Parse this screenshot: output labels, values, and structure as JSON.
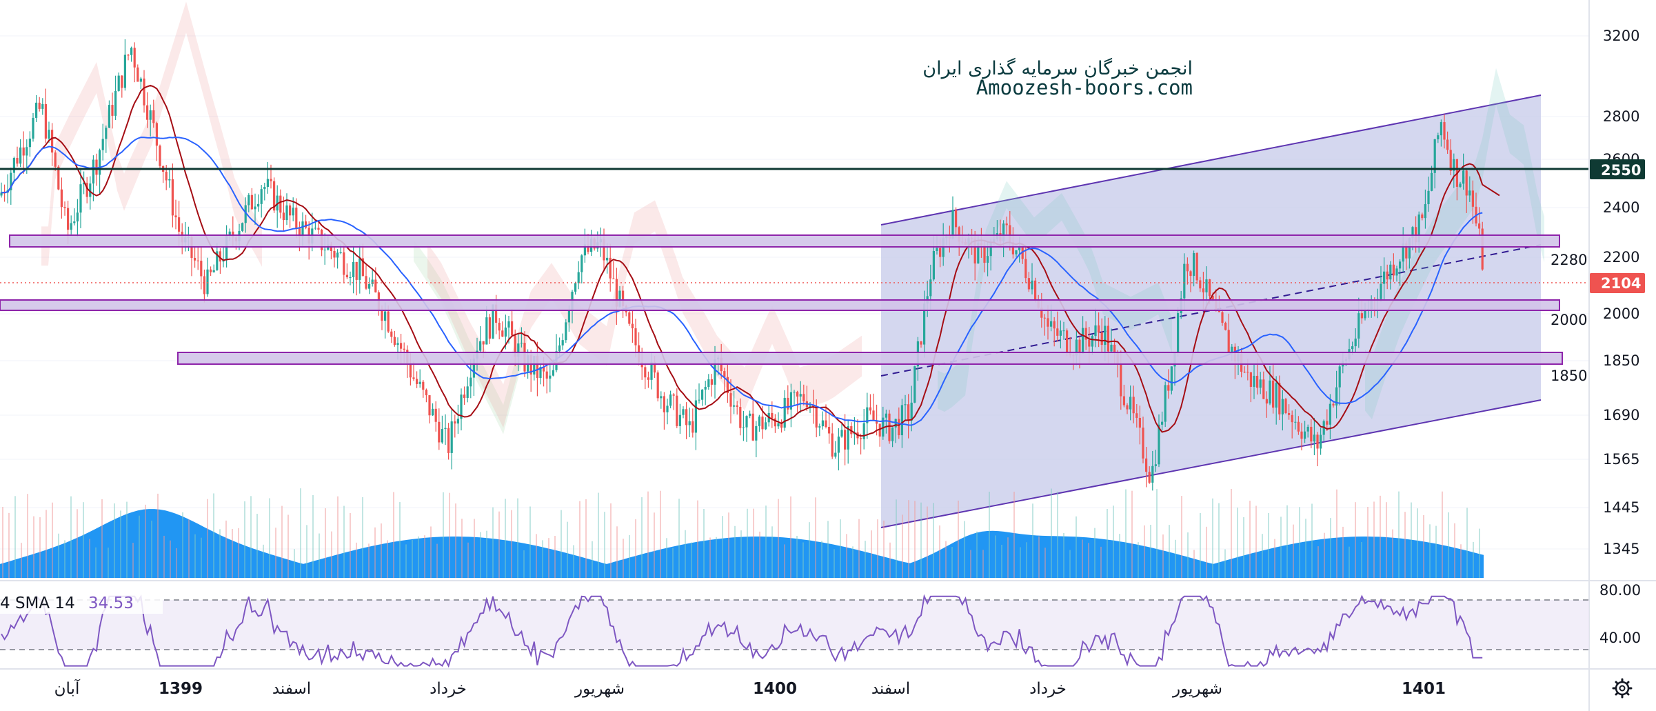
{
  "watermark": {
    "title": "انجمن خبرگان سرمایه گذاری ایران",
    "url": "Amoozesh-boors.com"
  },
  "price_axis": {
    "ticks": [
      "3200",
      "2800",
      "2600",
      "2400",
      "2200",
      "2000",
      "1850",
      "1690",
      "1565",
      "1445",
      "1345"
    ],
    "resistance_badge": "2550",
    "last_price_badge": "2104",
    "resistance_color": "#0f3a33",
    "last_price_color": "#ef5350"
  },
  "levels": {
    "labels": [
      "2280",
      "2000",
      "1850"
    ]
  },
  "indicator": {
    "label": "4 SMA 14",
    "value": "34.53",
    "ticks": [
      "80.00",
      "40.00"
    ],
    "line_color": "#7e57c2"
  },
  "time_axis": {
    "labels": [
      {
        "text": "آبان",
        "bold": false
      },
      {
        "text": "1399",
        "bold": true
      },
      {
        "text": "اسفند",
        "bold": false
      },
      {
        "text": "خرداد",
        "bold": false
      },
      {
        "text": "شهریور",
        "bold": false
      },
      {
        "text": "1400",
        "bold": true
      },
      {
        "text": "اسفند",
        "bold": false
      },
      {
        "text": "خرداد",
        "bold": false
      },
      {
        "text": "شهریور",
        "bold": false
      },
      {
        "text": "1401",
        "bold": true
      }
    ]
  },
  "settings_icon": "gear-icon",
  "chart_data": {
    "type": "candlestick",
    "x_axis": [
      "آبان",
      "1399",
      "اسفند",
      "خرداد",
      "شهریور",
      "1400",
      "اسفند",
      "خرداد",
      "شهریور",
      "1401"
    ],
    "y_ticks": [
      3200,
      2800,
      2600,
      2400,
      2200,
      2000,
      1850,
      1690,
      1565,
      1445,
      1345
    ],
    "horizontal_line": 2550,
    "last_price": 2104,
    "zones": [
      2280,
      2000,
      1850
    ],
    "up_color": "#26a69a",
    "down_color": "#ef5350",
    "close_path": [
      {
        "x": "آبان",
        "y": 2450
      },
      {
        "x": "1399",
        "y": 3150
      },
      {
        "x": "اسفند",
        "y": 2350
      },
      {
        "x": "خرداد",
        "y": 1600
      },
      {
        "x": "شهریور",
        "y": 2250
      },
      {
        "x": "1400",
        "y": 1680
      },
      {
        "x": "اسفند",
        "y": 1650
      },
      {
        "x": "خرداد",
        "y": 2050
      },
      {
        "x": "شهریور",
        "y": 2150
      },
      {
        "x": "1401",
        "y": 2104
      }
    ],
    "channel": {
      "color": "#5c6bc0"
    },
    "indicator_range": [
      20,
      80
    ]
  }
}
